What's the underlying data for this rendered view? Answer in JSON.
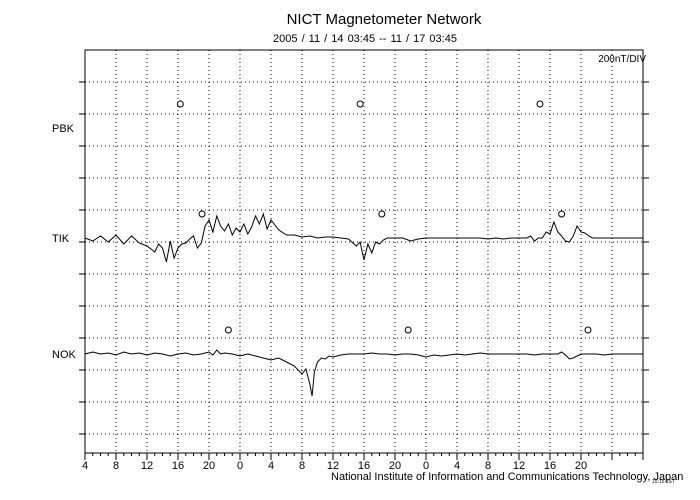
{
  "chart_data": {
    "type": "line",
    "title": "NICT Magnetometer Network",
    "subtitle": "2005 / 11 / 14   03:45 -- 11 / 17   03:45",
    "scale": "200nT/DIV",
    "footer": "National Institute of Information and Communications Technology, Japan",
    "stamp": "15:15 JST",
    "x_tick_labels": [
      "4",
      "8",
      "12",
      "16",
      "20",
      "0",
      "4",
      "8",
      "12",
      "16",
      "20",
      "0",
      "4",
      "8",
      "12",
      "16",
      "20"
    ],
    "hours_start": 4,
    "hours_span": 72,
    "grid": true,
    "stations": [
      {
        "name": "PBK",
        "has_data": false,
        "local_midnight_hours": [
          12.3,
          35.5,
          58.7
        ],
        "trace": []
      },
      {
        "name": "TIK",
        "has_data": true,
        "local_midnight_hours": [
          15.1,
          38.3,
          61.5
        ],
        "trace": [
          [
            0,
            0
          ],
          [
            1,
            -3
          ],
          [
            2,
            2
          ],
          [
            3,
            -4
          ],
          [
            4,
            3
          ],
          [
            5,
            -6
          ],
          [
            6,
            2
          ],
          [
            7,
            -5
          ],
          [
            8,
            -8
          ],
          [
            9,
            -14
          ],
          [
            9.5,
            -6
          ],
          [
            10,
            -10
          ],
          [
            10.5,
            -24
          ],
          [
            11,
            -3
          ],
          [
            11.5,
            -20
          ],
          [
            12,
            -10
          ],
          [
            12.5,
            -6
          ],
          [
            13,
            -5
          ],
          [
            13.5,
            -1
          ],
          [
            14,
            2
          ],
          [
            14.5,
            -10
          ],
          [
            15,
            -5
          ],
          [
            15.5,
            12
          ],
          [
            16,
            18
          ],
          [
            16.5,
            6
          ],
          [
            17,
            22
          ],
          [
            17.5,
            12
          ],
          [
            18,
            7
          ],
          [
            18.5,
            14
          ],
          [
            19,
            3
          ],
          [
            19.5,
            10
          ],
          [
            20,
            6
          ],
          [
            20.5,
            14
          ],
          [
            21,
            4
          ],
          [
            21.5,
            11
          ],
          [
            22,
            22
          ],
          [
            22.5,
            14
          ],
          [
            23,
            24
          ],
          [
            23.5,
            9
          ],
          [
            24,
            18
          ],
          [
            25,
            8
          ],
          [
            26,
            3
          ],
          [
            27,
            3
          ],
          [
            28,
            1
          ],
          [
            29,
            2
          ],
          [
            30,
            0
          ],
          [
            31,
            1
          ],
          [
            32,
            1
          ],
          [
            33,
            0
          ],
          [
            34,
            -1
          ],
          [
            35,
            -8
          ],
          [
            35.5,
            -4
          ],
          [
            36,
            -22
          ],
          [
            36.5,
            -6
          ],
          [
            37,
            -15
          ],
          [
            37.5,
            -4
          ],
          [
            38,
            -6
          ],
          [
            38.5,
            -2
          ],
          [
            39,
            0
          ],
          [
            40,
            0
          ],
          [
            41,
            0
          ],
          [
            42,
            -3
          ],
          [
            43,
            -1
          ],
          [
            44,
            0
          ],
          [
            45,
            0
          ],
          [
            46,
            0
          ],
          [
            47,
            0
          ],
          [
            48,
            0
          ],
          [
            49,
            0
          ],
          [
            50,
            0
          ],
          [
            51,
            0
          ],
          [
            52,
            -1
          ],
          [
            53,
            0
          ],
          [
            54,
            -1
          ],
          [
            55,
            0
          ],
          [
            56,
            0
          ],
          [
            57,
            0
          ],
          [
            57.5,
            2
          ],
          [
            58,
            -3
          ],
          [
            58.5,
            0
          ],
          [
            59,
            0
          ],
          [
            59.5,
            6
          ],
          [
            60,
            4
          ],
          [
            60.5,
            16
          ],
          [
            61,
            6
          ],
          [
            61.5,
            2
          ],
          [
            62,
            -3
          ],
          [
            62.5,
            -4
          ],
          [
            63,
            2
          ],
          [
            63.5,
            12
          ],
          [
            64,
            6
          ],
          [
            64.5,
            5
          ],
          [
            65,
            2
          ],
          [
            65.5,
            0
          ],
          [
            66,
            0
          ],
          [
            67,
            0
          ],
          [
            68,
            0
          ],
          [
            69,
            0
          ],
          [
            70,
            0
          ],
          [
            71,
            0
          ],
          [
            72,
            0
          ]
        ]
      },
      {
        "name": "NOK",
        "has_data": true,
        "local_midnight_hours": [
          18.5,
          41.7,
          64.9
        ],
        "trace": [
          [
            0,
            0
          ],
          [
            1,
            2
          ],
          [
            2,
            0
          ],
          [
            3,
            1
          ],
          [
            4,
            -1
          ],
          [
            5,
            2
          ],
          [
            6,
            0
          ],
          [
            7,
            1
          ],
          [
            8,
            -1
          ],
          [
            9,
            1
          ],
          [
            10,
            0
          ],
          [
            11,
            -2
          ],
          [
            12,
            0
          ],
          [
            13,
            1
          ],
          [
            14,
            -1
          ],
          [
            15,
            0
          ],
          [
            16,
            2
          ],
          [
            16.5,
            -1
          ],
          [
            17,
            4
          ],
          [
            17.5,
            0
          ],
          [
            18,
            1
          ],
          [
            19,
            0
          ],
          [
            20,
            -2
          ],
          [
            20.5,
            -1
          ],
          [
            21,
            0
          ],
          [
            22,
            -2
          ],
          [
            23,
            -4
          ],
          [
            24,
            -6
          ],
          [
            25,
            -4
          ],
          [
            26,
            -8
          ],
          [
            27,
            -12
          ],
          [
            28,
            -20
          ],
          [
            28.5,
            -15
          ],
          [
            29,
            -30
          ],
          [
            29.3,
            -42
          ],
          [
            29.6,
            -18
          ],
          [
            30,
            -8
          ],
          [
            30.5,
            -4
          ],
          [
            31,
            -5
          ],
          [
            31.5,
            -2
          ],
          [
            32,
            -3
          ],
          [
            33,
            -1
          ],
          [
            34,
            0
          ],
          [
            35,
            0
          ],
          [
            36,
            0
          ],
          [
            37,
            1
          ],
          [
            38,
            0
          ],
          [
            39,
            0
          ],
          [
            40,
            -1
          ],
          [
            41,
            0
          ],
          [
            42,
            0
          ],
          [
            43,
            -1
          ],
          [
            44,
            -3
          ],
          [
            45,
            -1
          ],
          [
            46,
            -2
          ],
          [
            47,
            -1
          ],
          [
            48,
            0
          ],
          [
            49,
            -1
          ],
          [
            50,
            0
          ],
          [
            51,
            1
          ],
          [
            52,
            0
          ],
          [
            53,
            0
          ],
          [
            54,
            0
          ],
          [
            55,
            0
          ],
          [
            56,
            0
          ],
          [
            57,
            0
          ],
          [
            58,
            -1
          ],
          [
            59,
            0
          ],
          [
            60,
            0
          ],
          [
            61,
            0
          ],
          [
            61.5,
            2
          ],
          [
            62,
            -1
          ],
          [
            62.5,
            -5
          ],
          [
            63,
            -4
          ],
          [
            63.5,
            -2
          ],
          [
            64,
            0
          ],
          [
            65,
            0
          ],
          [
            66,
            0
          ],
          [
            67,
            -1
          ],
          [
            68,
            0
          ],
          [
            69,
            0
          ],
          [
            70,
            0
          ],
          [
            71,
            0
          ],
          [
            72,
            0
          ]
        ]
      }
    ]
  }
}
